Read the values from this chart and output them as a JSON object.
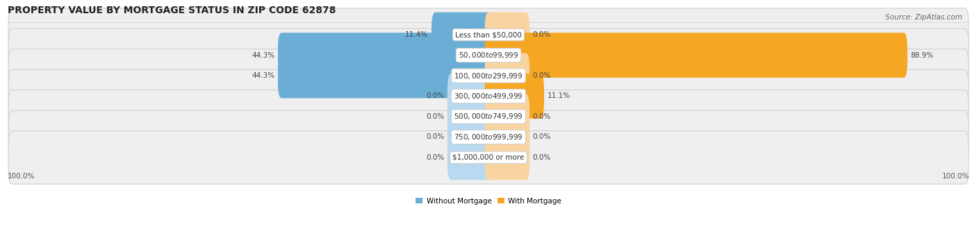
{
  "title": "PROPERTY VALUE BY MORTGAGE STATUS IN ZIP CODE 62878",
  "source": "Source: ZipAtlas.com",
  "categories": [
    "Less than $50,000",
    "$50,000 to $99,999",
    "$100,000 to $299,999",
    "$300,000 to $499,999",
    "$500,000 to $749,999",
    "$750,000 to $999,999",
    "$1,000,000 or more"
  ],
  "without_mortgage": [
    11.4,
    44.3,
    44.3,
    0.0,
    0.0,
    0.0,
    0.0
  ],
  "with_mortgage": [
    0.0,
    88.9,
    0.0,
    11.1,
    0.0,
    0.0,
    0.0
  ],
  "color_without": "#6aaed6",
  "color_with": "#f5a623",
  "color_without_light": "#b8d9f0",
  "color_with_light": "#fad4a0",
  "row_bg_odd": "#ebebeb",
  "row_bg_even": "#f5f5f5",
  "title_fontsize": 10,
  "source_fontsize": 7.5,
  "label_fontsize": 7.5,
  "tick_fontsize": 7.5,
  "legend_labels": [
    "Without Mortgage",
    "With Mortgage"
  ],
  "max_val": 100.0,
  "placeholder_val": 8.0
}
